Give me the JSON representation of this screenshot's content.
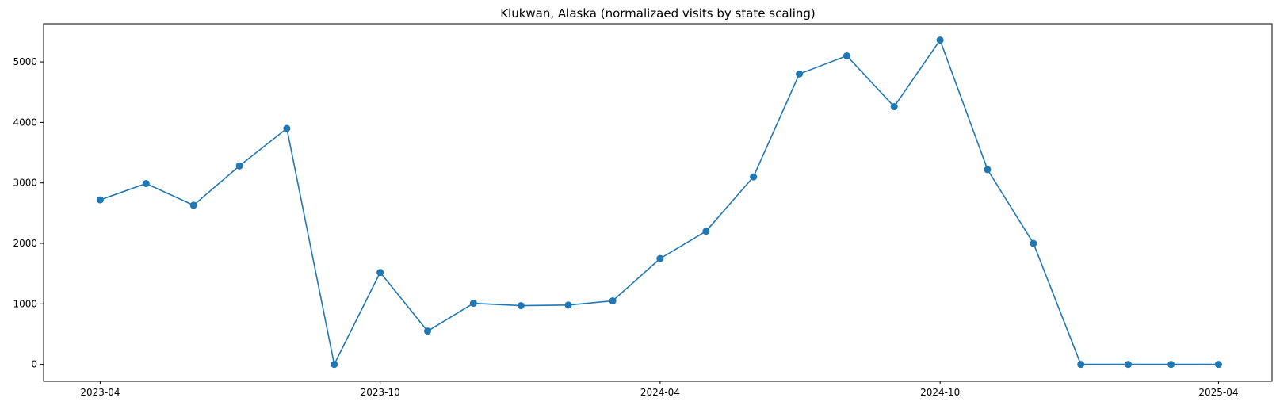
{
  "chart_data": {
    "type": "line",
    "title": "Klukwan, Alaska (normalizaed visits by state scaling)",
    "xlabel": "",
    "ylabel": "",
    "x_ticks": [
      "2023-04",
      "2023-10",
      "2024-04",
      "2024-10",
      "2025-04"
    ],
    "y_ticks": [
      0,
      1000,
      2000,
      3000,
      4000,
      5000
    ],
    "ylim": [
      -280,
      5630
    ],
    "xlim": [
      "2023-02-23",
      "2025-05-06"
    ],
    "grid": false,
    "marker": "circle",
    "line_color": "#1f77b4",
    "series": [
      {
        "x": [
          "2023-04-01",
          "2023-05-01",
          "2023-06-01",
          "2023-07-01",
          "2023-08-01",
          "2023-09-01",
          "2023-10-01",
          "2023-11-01",
          "2023-12-01",
          "2024-01-01",
          "2024-02-01",
          "2024-03-01",
          "2024-04-01",
          "2024-05-01",
          "2024-06-01",
          "2024-07-01",
          "2024-08-01",
          "2024-09-01",
          "2024-10-01",
          "2024-11-01",
          "2024-12-01",
          "2025-01-01",
          "2025-02-01",
          "2025-03-01",
          "2025-04-01"
        ],
        "values": [
          2720,
          2990,
          2630,
          3280,
          3900,
          0,
          1520,
          550,
          1010,
          970,
          980,
          1050,
          1750,
          2200,
          3100,
          4800,
          5100,
          4260,
          5360,
          3220,
          2000,
          0,
          0,
          0,
          0
        ]
      }
    ]
  }
}
